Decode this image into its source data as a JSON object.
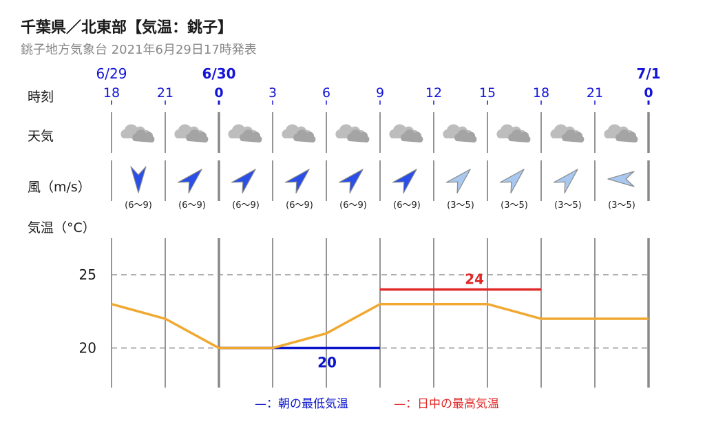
{
  "header": {
    "title": "千葉県／北東部【気温：銚子】",
    "subtitle": "銚子地方気象台 2021年6月29日17時発表"
  },
  "labels": {
    "time": "時刻",
    "weather": "天気",
    "wind": "風（m/s）",
    "temperature": "気温（°C）"
  },
  "dates": [
    {
      "label": "6/29",
      "slot": 0,
      "bold": false
    },
    {
      "label": "6/30",
      "slot": 2,
      "bold": true
    },
    {
      "label": "7/1",
      "slot": 10,
      "bold": true
    }
  ],
  "hours": [
    "18",
    "21",
    "0",
    "3",
    "6",
    "9",
    "12",
    "15",
    "18",
    "21",
    "0"
  ],
  "weather_icons": [
    "cloud-icon",
    "cloud-icon",
    "cloud-icon",
    "cloud-icon",
    "cloud-icon",
    "cloud-icon",
    "cloud-icon",
    "cloud-icon",
    "cloud-icon",
    "cloud-icon"
  ],
  "wind": [
    {
      "dir": "N",
      "range": "(6〜9)",
      "strength": "strong"
    },
    {
      "dir": "SW",
      "range": "(6〜9)",
      "strength": "strong"
    },
    {
      "dir": "SW",
      "range": "(6〜9)",
      "strength": "strong"
    },
    {
      "dir": "SW",
      "range": "(6〜9)",
      "strength": "strong"
    },
    {
      "dir": "SW",
      "range": "(6〜9)",
      "strength": "strong"
    },
    {
      "dir": "SW",
      "range": "(6〜9)",
      "strength": "strong"
    },
    {
      "dir": "SW",
      "range": "(3〜5)",
      "strength": "weak"
    },
    {
      "dir": "SW",
      "range": "(3〜5)",
      "strength": "weak"
    },
    {
      "dir": "SW",
      "range": "(3〜5)",
      "strength": "weak"
    },
    {
      "dir": "E",
      "range": "(3〜5)",
      "strength": "weak"
    }
  ],
  "colors": {
    "temp_line": "#f0a830",
    "min_line": "#0a14c8",
    "max_line": "#e02828",
    "strong_arrow": "#2a4ee8",
    "weak_arrow": "#a8c8f0",
    "grid": "#888888",
    "date_text": "#1414d8"
  },
  "chart_data": {
    "type": "line",
    "x": [
      "6/29 18",
      "6/29 21",
      "6/30 0",
      "6/30 3",
      "6/30 6",
      "6/30 9",
      "6/30 12",
      "6/30 15",
      "6/30 18",
      "6/30 21",
      "7/1 0"
    ],
    "series": [
      {
        "values": [
          23,
          22,
          20,
          20,
          21,
          23,
          23,
          23,
          22,
          22,
          22
        ]
      }
    ],
    "annotations": [
      {
        "label": "20",
        "value": 20,
        "from": "6/30 0",
        "to": "6/30 9",
        "kind": "min"
      },
      {
        "label": "24",
        "value": 24,
        "from": "6/30 9",
        "to": "6/30 18",
        "kind": "max"
      }
    ],
    "yticks": [
      "25",
      "20"
    ],
    "ylim": [
      17.3,
      27.5
    ],
    "grid": true
  },
  "legend": {
    "min_label": "—：朝の最低気温",
    "max_label": "—：日中の最高気温"
  }
}
